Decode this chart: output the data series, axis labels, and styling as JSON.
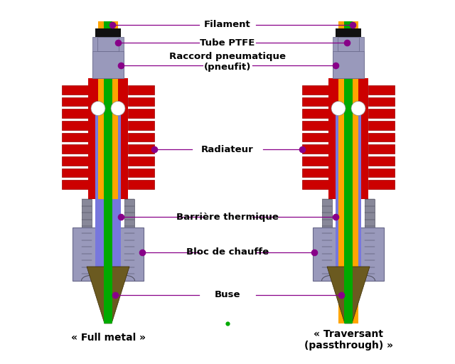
{
  "labels": {
    "filament": "Filament",
    "tube_ptfe": "Tube PTFE",
    "raccord": "Raccord pneumatique\n(pneufit)",
    "radiateur": "Radiateur",
    "barriere": "Barrière thermique",
    "bloc": "Bloc de chauffe",
    "buse": "Buse",
    "full_metal": "« Full metal »",
    "traversant": "« Traversant\n(passthrough) »"
  },
  "colors": {
    "filament_green": "#00AA00",
    "tube_ptfe_orange": "#FFA500",
    "background": "#FFFFFF",
    "rad_red": "#CC0000",
    "rad_dark": "#990000",
    "thermal_blue": "#7777DD",
    "block_gray": "#9999BB",
    "nozzle_brown": "#6B5A20",
    "coupler_gray": "#9999BB",
    "screw_gray": "#888899",
    "label_purple": "#880088",
    "black": "#111111",
    "white": "#FFFFFF"
  },
  "fig_width": 6.4,
  "fig_height": 5.12,
  "dpi": 100
}
